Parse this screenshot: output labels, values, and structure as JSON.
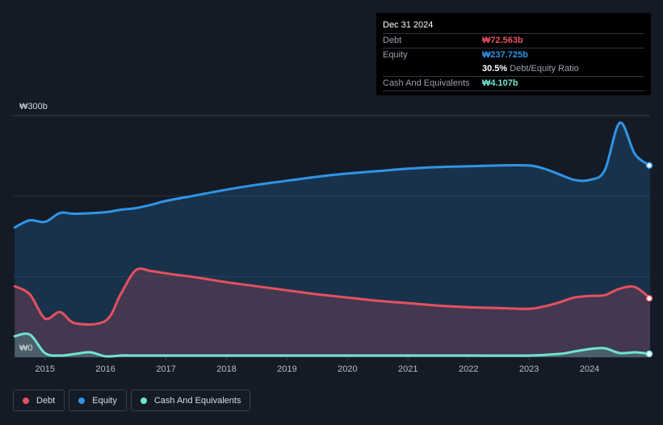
{
  "tooltip": {
    "date": "Dec 31 2024",
    "rows": [
      {
        "label": "Debt",
        "value": "₩72.563b",
        "color": "#e5515f"
      },
      {
        "label": "Equity",
        "value": "₩237.725b",
        "color": "#2f95e6"
      },
      {
        "label": "",
        "value": "30.5%",
        "sub": "Debt/Equity Ratio",
        "color": "#ffffff"
      },
      {
        "label": "Cash And Equivalents",
        "value": "₩4.107b",
        "color": "#6fe4cf"
      }
    ]
  },
  "legend": [
    {
      "label": "Debt",
      "color": "#e5515f"
    },
    {
      "label": "Equity",
      "color": "#2f95e6"
    },
    {
      "label": "Cash And Equivalents",
      "color": "#6fe4cf"
    }
  ],
  "chart_data": {
    "type": "area",
    "ylim": [
      0,
      300
    ],
    "y_ticks": [
      {
        "value": 300,
        "label": "₩300b"
      },
      {
        "value": 0,
        "label": "₩0"
      }
    ],
    "x_ticks": [
      "2015",
      "2016",
      "2017",
      "2018",
      "2019",
      "2020",
      "2021",
      "2022",
      "2023",
      "2024"
    ],
    "xlim": [
      2014.47,
      2025.0
    ],
    "series": [
      {
        "name": "Equity",
        "color": "#2f95e6",
        "points": [
          [
            2014.5,
            161
          ],
          [
            2014.75,
            170
          ],
          [
            2015.0,
            168
          ],
          [
            2015.25,
            179
          ],
          [
            2015.5,
            178
          ],
          [
            2016.0,
            180
          ],
          [
            2016.25,
            183
          ],
          [
            2016.5,
            185
          ],
          [
            2016.75,
            189
          ],
          [
            2017.0,
            194
          ],
          [
            2017.5,
            201
          ],
          [
            2018.0,
            208
          ],
          [
            2018.5,
            214
          ],
          [
            2019.0,
            219
          ],
          [
            2019.5,
            224
          ],
          [
            2020.0,
            228
          ],
          [
            2020.5,
            231
          ],
          [
            2021.0,
            234
          ],
          [
            2021.5,
            236
          ],
          [
            2022.0,
            237
          ],
          [
            2022.5,
            238
          ],
          [
            2023.0,
            238
          ],
          [
            2023.25,
            234
          ],
          [
            2023.5,
            227
          ],
          [
            2023.75,
            220
          ],
          [
            2024.0,
            220
          ],
          [
            2024.25,
            232
          ],
          [
            2024.5,
            291
          ],
          [
            2024.75,
            252
          ],
          [
            2025.0,
            238
          ]
        ]
      },
      {
        "name": "Debt",
        "color": "#e5515f",
        "points": [
          [
            2014.5,
            88
          ],
          [
            2014.75,
            78
          ],
          [
            2015.0,
            48
          ],
          [
            2015.25,
            56
          ],
          [
            2015.5,
            42
          ],
          [
            2016.0,
            45
          ],
          [
            2016.25,
            78
          ],
          [
            2016.5,
            108
          ],
          [
            2016.75,
            107
          ],
          [
            2017.0,
            104
          ],
          [
            2017.5,
            99
          ],
          [
            2018.0,
            93
          ],
          [
            2018.5,
            88
          ],
          [
            2019.0,
            83
          ],
          [
            2019.5,
            78
          ],
          [
            2020.0,
            74
          ],
          [
            2020.5,
            70
          ],
          [
            2021.0,
            67
          ],
          [
            2021.5,
            64
          ],
          [
            2022.0,
            62
          ],
          [
            2022.5,
            61
          ],
          [
            2023.0,
            60
          ],
          [
            2023.25,
            63
          ],
          [
            2023.5,
            68
          ],
          [
            2023.75,
            74
          ],
          [
            2024.0,
            76
          ],
          [
            2024.25,
            77
          ],
          [
            2024.5,
            85
          ],
          [
            2024.75,
            87
          ],
          [
            2025.0,
            73
          ]
        ]
      },
      {
        "name": "Cash And Equivalents",
        "color": "#6fe4cf",
        "points": [
          [
            2014.5,
            26
          ],
          [
            2014.75,
            28
          ],
          [
            2015.0,
            5
          ],
          [
            2015.25,
            2
          ],
          [
            2015.5,
            4
          ],
          [
            2015.75,
            6
          ],
          [
            2016.0,
            1
          ],
          [
            2016.25,
            2
          ],
          [
            2016.5,
            2
          ],
          [
            2016.75,
            2
          ],
          [
            2017.0,
            2
          ],
          [
            2018.0,
            2
          ],
          [
            2019.0,
            2
          ],
          [
            2020.0,
            2
          ],
          [
            2021.0,
            2
          ],
          [
            2022.0,
            2
          ],
          [
            2023.0,
            2
          ],
          [
            2023.5,
            4
          ],
          [
            2023.75,
            7
          ],
          [
            2024.0,
            10
          ],
          [
            2024.25,
            11
          ],
          [
            2024.5,
            5
          ],
          [
            2024.75,
            6
          ],
          [
            2025.0,
            4
          ]
        ]
      }
    ]
  }
}
